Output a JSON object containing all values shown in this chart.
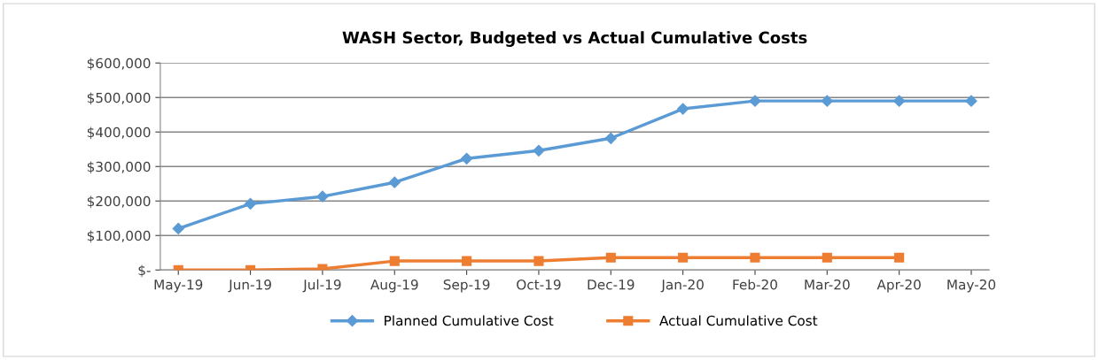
{
  "chart_data": {
    "type": "line",
    "title": "WASH Sector, Budgeted vs Actual Cumulative Costs",
    "categories": [
      "May-19",
      "Jun-19",
      "Jul-19",
      "Aug-19",
      "Sep-19",
      "Oct-19",
      "Dec-19",
      "Jan-20",
      "Feb-20",
      "Mar-20",
      "Apr-20",
      "May-20"
    ],
    "series": [
      {
        "name": "Planned Cumulative Cost",
        "color": "#5b9bd5",
        "marker": "diamond",
        "values": [
          120000,
          192000,
          213000,
          254000,
          323000,
          346000,
          382000,
          467000,
          490000,
          490000,
          490000,
          490000
        ]
      },
      {
        "name": "Actual Cumulative Cost",
        "color": "#ed7d31",
        "marker": "square",
        "values": [
          0,
          0,
          3000,
          26000,
          26000,
          26000,
          36000,
          36000,
          36000,
          36000,
          36000,
          null
        ]
      }
    ],
    "ylim": [
      0,
      600000
    ],
    "yticks": [
      {
        "value": 0,
        "label": "$-"
      },
      {
        "value": 100000,
        "label": "$100,000"
      },
      {
        "value": 200000,
        "label": "$200,000"
      },
      {
        "value": 300000,
        "label": "$300,000"
      },
      {
        "value": 400000,
        "label": "$400,000"
      },
      {
        "value": 500000,
        "label": "$500,000"
      },
      {
        "value": 600000,
        "label": "$600,000"
      }
    ],
    "grid": "y",
    "legend": "bottom",
    "line_style": "solid"
  }
}
